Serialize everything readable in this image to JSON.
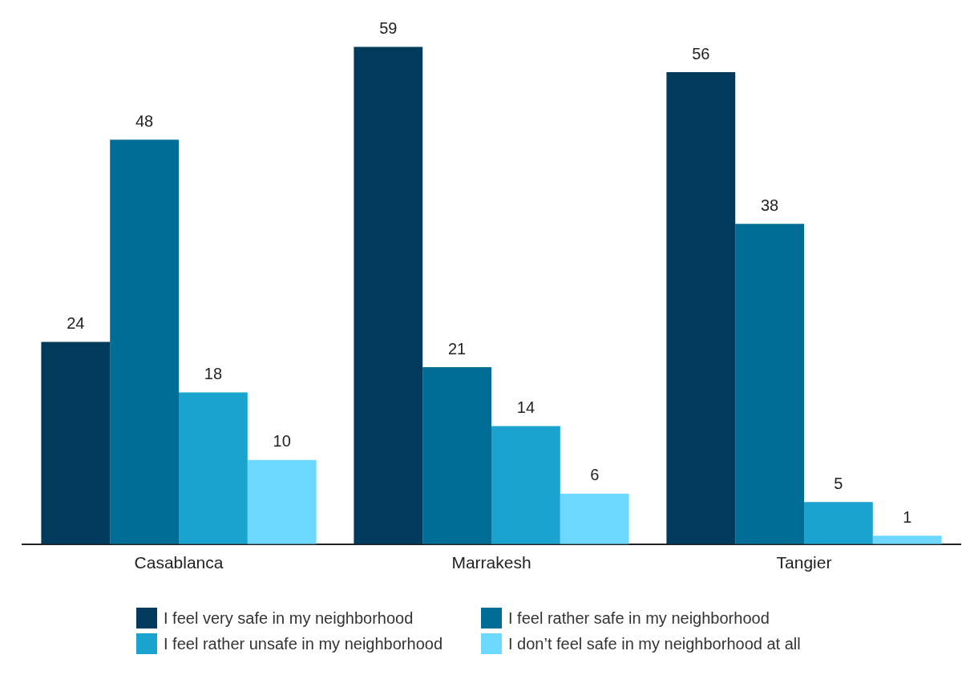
{
  "chart_data": {
    "type": "bar",
    "categories": [
      "Casablanca",
      "Marrakesh",
      "Tangier"
    ],
    "series": [
      {
        "name": "I feel very safe in my neighborhood",
        "color": "#003a5d",
        "values": [
          24,
          59,
          56
        ]
      },
      {
        "name": "I feel rather safe in my neighborhood",
        "color": "#006d96",
        "values": [
          48,
          21,
          38
        ]
      },
      {
        "name": "I feel rather unsafe in my neighborhood",
        "color": "#1ba3cf",
        "values": [
          18,
          14,
          5
        ]
      },
      {
        "name": "I don’t feel safe in my neighborhood at all",
        "color": "#6dd8ff",
        "values": [
          10,
          6,
          1
        ]
      }
    ],
    "data_labels": true,
    "legend": "bottom",
    "grid": false
  }
}
